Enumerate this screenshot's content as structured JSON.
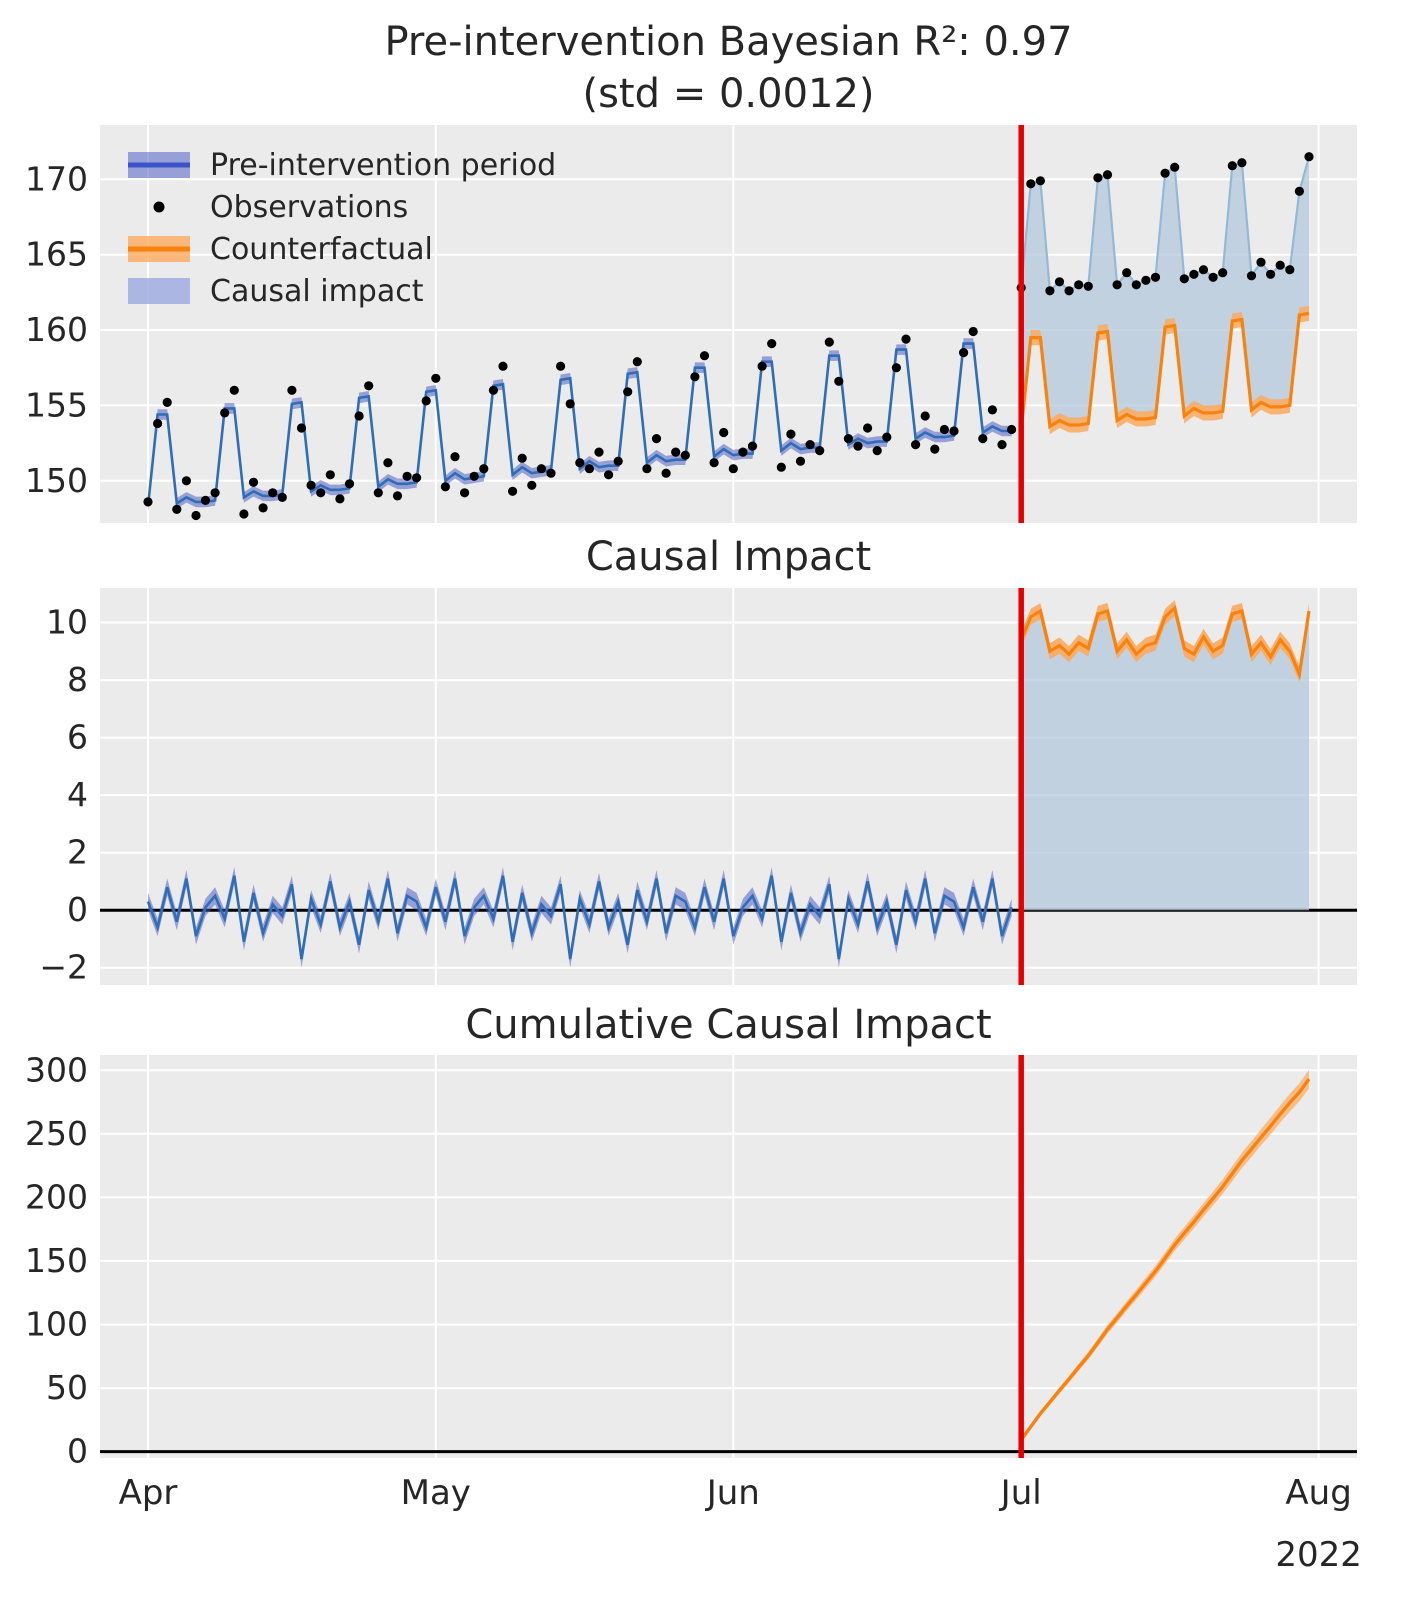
{
  "titles": {
    "top_line1": "Pre-intervention Bayesian R²: 0.97",
    "top_line2": "(std = 0.0012)",
    "middle": "Causal Impact",
    "bottom": "Cumulative Causal Impact"
  },
  "legend": {
    "items": [
      {
        "label": "Pre-intervention period",
        "type": "band-blue"
      },
      {
        "label": "Observations",
        "type": "black-dot"
      },
      {
        "label": "Counterfactual",
        "type": "band-orange"
      },
      {
        "label": "Causal impact",
        "type": "patch-lightblue"
      }
    ]
  },
  "colors": {
    "panel_bg": "#ebebeb",
    "grid": "#ffffff",
    "pre_line": "#2f6db5",
    "pre_band": "#4353c4",
    "counterfactual_line": "#f8820e",
    "counterfactual_band": "#fcaa5f",
    "impact_fill": "#b4c8dc",
    "impact_edge": "#93b9d6",
    "observation_dot": "#000000",
    "intervention_line": "#e50000",
    "axhline": "#000000",
    "tick_label": "#262626"
  },
  "chart_data": {
    "type": "line",
    "r2": 0.97,
    "r2_std": 0.0012,
    "x_unit": "days from 2022-04-01",
    "intervention_day": 91,
    "year_label": "2022",
    "x_months": [
      {
        "label": "Apr",
        "day": 0
      },
      {
        "label": "May",
        "day": 30
      },
      {
        "label": "Jun",
        "day": 61
      },
      {
        "label": "Jul",
        "day": 91
      },
      {
        "label": "Aug",
        "day": 122
      }
    ],
    "panels": [
      {
        "title": "Pre-intervention Bayesian R²: 0.97 (std = 0.0012)",
        "ylim": [
          147.2,
          173.6
        ],
        "yticks": [
          150,
          155,
          160,
          165,
          170
        ],
        "ytick_labels": [
          "150",
          "155",
          "160",
          "165",
          "170"
        ]
      },
      {
        "title": "Causal Impact",
        "ylim": [
          -2.6,
          11.2
        ],
        "yticks": [
          -2,
          0,
          2,
          4,
          6,
          8,
          10
        ],
        "ytick_labels": [
          "−2",
          "0",
          "2",
          "4",
          "6",
          "8",
          "10"
        ]
      },
      {
        "title": "Cumulative Causal Impact",
        "ylim": [
          -5,
          312
        ],
        "yticks": [
          0,
          50,
          100,
          150,
          200,
          250,
          300
        ],
        "ytick_labels": [
          "0",
          "50",
          "100",
          "150",
          "200",
          "250",
          "300"
        ]
      }
    ],
    "pre": {
      "start_day": 0,
      "observations": [
        148.6,
        153.8,
        155.2,
        148.1,
        150.0,
        147.7,
        148.7,
        149.2,
        154.5,
        156.0,
        147.8,
        149.9,
        148.2,
        149.2,
        148.9,
        156.0,
        153.5,
        149.7,
        149.2,
        150.4,
        148.8,
        149.8,
        154.3,
        156.3,
        149.2,
        151.2,
        149.0,
        150.3,
        150.2,
        155.3,
        156.8,
        149.6,
        151.6,
        149.2,
        150.3,
        150.8,
        156.0,
        157.6,
        149.3,
        151.5,
        149.7,
        150.8,
        150.5,
        157.6,
        155.1,
        151.2,
        150.8,
        151.9,
        150.4,
        151.3,
        155.9,
        157.9,
        150.8,
        152.8,
        150.5,
        151.9,
        151.7,
        156.9,
        158.3,
        151.2,
        153.2,
        150.8,
        151.9,
        152.3,
        157.6,
        159.1,
        150.9,
        153.1,
        151.3,
        152.4,
        152.0,
        159.2,
        156.6,
        152.8,
        152.3,
        153.5,
        152.0,
        152.9,
        157.5,
        159.4,
        152.4,
        154.3,
        152.1,
        153.4,
        153.3,
        158.5,
        159.9,
        152.8,
        154.7,
        152.4,
        153.4
      ],
      "model_mean": [
        148.3,
        154.4,
        154.4,
        148.5,
        148.9,
        148.6,
        148.6,
        148.7,
        154.8,
        154.8,
        148.9,
        149.3,
        149.0,
        149.0,
        149.1,
        155.1,
        155.2,
        149.3,
        149.7,
        149.4,
        149.4,
        149.5,
        155.5,
        155.6,
        149.6,
        150.1,
        149.8,
        149.8,
        149.9,
        155.9,
        156.0,
        150.0,
        150.5,
        150.1,
        150.2,
        150.3,
        156.3,
        156.4,
        150.4,
        150.9,
        150.5,
        150.6,
        150.7,
        156.7,
        156.8,
        150.8,
        151.3,
        150.9,
        151.0,
        151.0,
        157.1,
        157.2,
        151.2,
        151.7,
        151.3,
        151.4,
        151.4,
        157.5,
        157.5,
        151.6,
        152.1,
        151.7,
        151.8,
        151.8,
        157.9,
        157.9,
        152.0,
        152.5,
        152.1,
        152.2,
        152.2,
        158.3,
        158.3,
        152.4,
        152.8,
        152.5,
        152.6,
        152.6,
        158.7,
        158.7,
        152.8,
        153.2,
        152.9,
        152.9,
        153.0,
        159.1,
        159.1,
        153.2,
        153.6,
        153.3,
        153.3
      ],
      "impact": [
        0.3,
        -0.6,
        0.8,
        -0.4,
        1.1,
        -0.9,
        0.1,
        0.5,
        -0.3,
        1.2,
        -1.1,
        0.6,
        -0.8,
        0.2,
        -0.2,
        0.9,
        -1.7,
        0.4,
        -0.5,
        1.0,
        -0.6,
        0.3,
        -1.2,
        0.7,
        -0.4,
        1.1,
        -0.8,
        0.5,
        0.3,
        -0.6,
        0.8,
        -0.4,
        1.1,
        -0.9,
        0.1,
        0.5,
        -0.3,
        1.2,
        -1.1,
        0.6,
        -0.8,
        0.2,
        -0.2,
        0.9,
        -1.7,
        0.4,
        -0.5,
        1.0,
        -0.6,
        0.3,
        -1.2,
        0.7,
        -0.4,
        1.1,
        -0.8,
        0.5,
        0.3,
        -0.6,
        0.8,
        -0.4,
        1.1,
        -0.9,
        0.1,
        0.5,
        -0.3,
        1.2,
        -1.1,
        0.6,
        -0.8,
        0.2,
        -0.2,
        0.9,
        -1.7,
        0.4,
        -0.5,
        1.0,
        -0.6,
        0.3,
        -1.2,
        0.7,
        -0.4,
        1.1,
        -0.8,
        0.5,
        0.3,
        -0.6,
        0.8,
        -0.4,
        1.1,
        -0.9,
        0.1
      ]
    },
    "post": {
      "start_day": 91,
      "observations": [
        162.8,
        169.7,
        169.9,
        162.6,
        163.2,
        162.6,
        163.0,
        162.9,
        170.1,
        170.3,
        163.0,
        163.8,
        163.0,
        163.3,
        163.5,
        170.4,
        170.8,
        163.4,
        163.7,
        164.0,
        163.5,
        163.8,
        170.9,
        171.1,
        163.6,
        164.5,
        163.7,
        164.3,
        164.0,
        169.2,
        171.5
      ],
      "counterfactual": [
        153.4,
        159.5,
        159.5,
        153.6,
        154.0,
        153.7,
        153.7,
        153.8,
        159.8,
        159.9,
        154.0,
        154.4,
        154.1,
        154.1,
        154.2,
        160.2,
        160.3,
        154.3,
        154.8,
        154.5,
        154.5,
        154.6,
        160.6,
        160.7,
        154.7,
        155.2,
        154.9,
        154.9,
        155.0,
        161.0,
        161.1
      ],
      "impact": [
        9.4,
        10.2,
        10.4,
        9.0,
        9.2,
        8.9,
        9.3,
        9.1,
        10.3,
        10.4,
        9.0,
        9.4,
        8.9,
        9.2,
        9.3,
        10.2,
        10.5,
        9.1,
        8.9,
        9.5,
        9.0,
        9.2,
        10.3,
        10.4,
        8.9,
        9.3,
        8.8,
        9.4,
        9.0,
        8.2,
        10.4
      ],
      "cumulative": [
        9.4,
        19.6,
        30.0,
        39.0,
        48.2,
        57.1,
        66.4,
        75.5,
        85.8,
        96.2,
        105.2,
        114.6,
        123.5,
        132.7,
        142.0,
        152.2,
        162.7,
        171.8,
        180.7,
        190.2,
        199.2,
        208.4,
        218.7,
        229.1,
        238.0,
        247.3,
        256.1,
        265.5,
        274.5,
        282.7,
        293.1
      ]
    }
  }
}
